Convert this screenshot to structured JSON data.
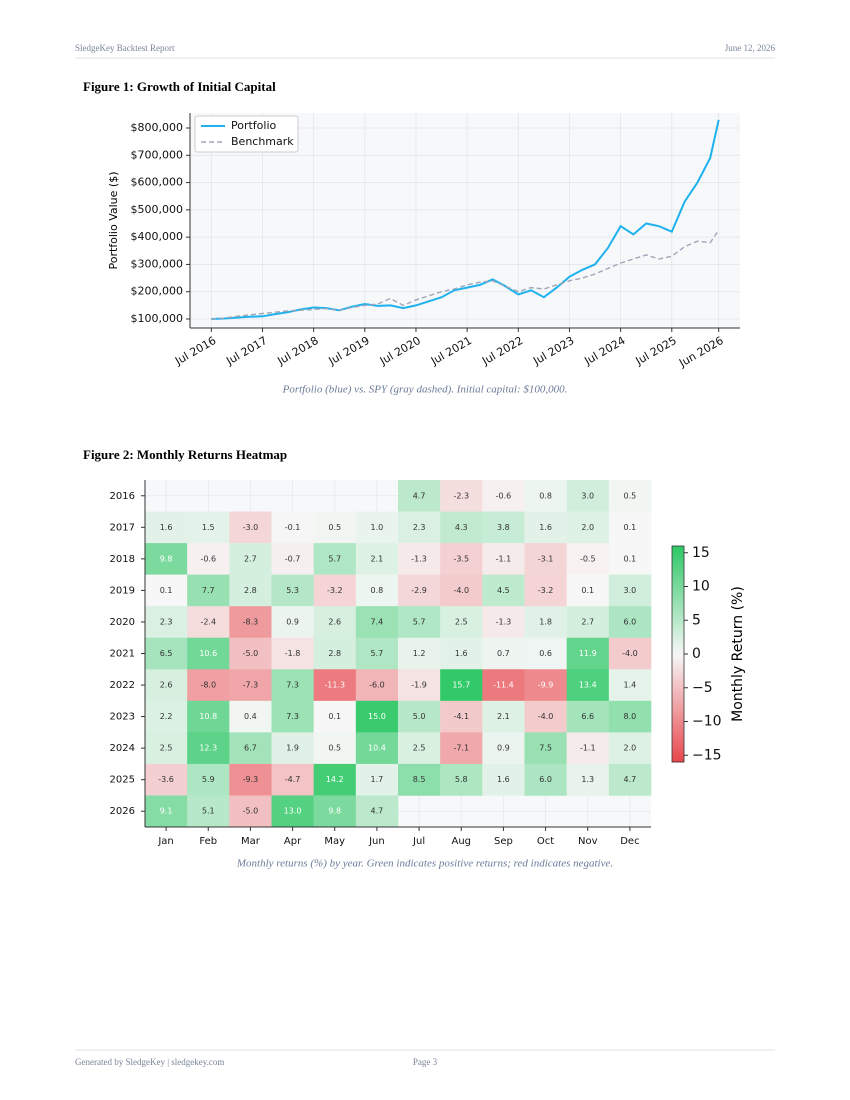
{
  "header": {
    "title": "SledgeKey Backtest Report",
    "date": "June 12, 2026"
  },
  "footer": {
    "left": "Generated by SledgeKey | sledgekey.com",
    "page": "Page 3"
  },
  "chart_data": [
    {
      "type": "line",
      "title": "Figure 1: Growth of Initial Capital",
      "caption": "Portfolio (blue) vs. SPY (gray dashed). Initial capital: $100,000.",
      "ylabel": "Portfolio Value ($)",
      "grid": true,
      "legend": "upper left",
      "x": [
        "2016-07",
        "2016-10",
        "2017-01",
        "2017-04",
        "2017-07",
        "2017-10",
        "2018-01",
        "2018-04",
        "2018-07",
        "2018-10",
        "2019-01",
        "2019-04",
        "2019-07",
        "2019-10",
        "2020-01",
        "2020-04",
        "2020-07",
        "2020-10",
        "2021-01",
        "2021-04",
        "2021-07",
        "2021-10",
        "2022-01",
        "2022-04",
        "2022-07",
        "2022-10",
        "2023-01",
        "2023-04",
        "2023-07",
        "2023-10",
        "2024-01",
        "2024-04",
        "2024-07",
        "2024-10",
        "2025-01",
        "2025-04",
        "2025-07",
        "2025-10",
        "2026-01",
        "2026-04",
        "2026-06"
      ],
      "series": [
        {
          "name": "Portfolio",
          "color": "#1fb2ef",
          "dash": false,
          "values": [
            100000,
            102000,
            105000,
            108000,
            110000,
            118000,
            125000,
            135000,
            142000,
            140000,
            132000,
            145000,
            155000,
            148000,
            150000,
            140000,
            150000,
            165000,
            180000,
            205000,
            215000,
            225000,
            245000,
            220000,
            190000,
            205000,
            180000,
            215000,
            255000,
            280000,
            300000,
            360000,
            440000,
            410000,
            450000,
            440000,
            420000,
            530000,
            600000,
            690000,
            830000
          ]
        },
        {
          "name": "Benchmark",
          "color": "#9ea6b8",
          "dash": true,
          "values": [
            100000,
            103000,
            110000,
            115000,
            120000,
            125000,
            130000,
            132000,
            135000,
            138000,
            132000,
            142000,
            150000,
            155000,
            175000,
            150000,
            170000,
            185000,
            200000,
            210000,
            225000,
            235000,
            240000,
            220000,
            200000,
            215000,
            210000,
            225000,
            240000,
            250000,
            265000,
            285000,
            305000,
            320000,
            335000,
            320000,
            330000,
            365000,
            385000,
            380000,
            425000
          ]
        }
      ],
      "xlim": [
        "2016-02",
        "2026-11"
      ],
      "xticks": [
        {
          "value": "2016-07",
          "label": "Jul 2016"
        },
        {
          "value": "2017-07",
          "label": "Jul 2017"
        },
        {
          "value": "2018-07",
          "label": "Jul 2018"
        },
        {
          "value": "2019-07",
          "label": "Jul 2019"
        },
        {
          "value": "2020-07",
          "label": "Jul 2020"
        },
        {
          "value": "2021-07",
          "label": "Jul 2021"
        },
        {
          "value": "2022-07",
          "label": "Jul 2022"
        },
        {
          "value": "2023-07",
          "label": "Jul 2023"
        },
        {
          "value": "2024-07",
          "label": "Jul 2024"
        },
        {
          "value": "2025-07",
          "label": "Jul 2025"
        },
        {
          "value": "2026-06",
          "label": "Jun 2026"
        }
      ],
      "ylim": [
        67000,
        855000
      ],
      "yticks": [
        {
          "value": 100000,
          "label": "$100,000"
        },
        {
          "value": 200000,
          "label": "$200,000"
        },
        {
          "value": 300000,
          "label": "$300,000"
        },
        {
          "value": 400000,
          "label": "$400,000"
        },
        {
          "value": 500000,
          "label": "$500,000"
        },
        {
          "value": 600000,
          "label": "$600,000"
        },
        {
          "value": 700000,
          "label": "$700,000"
        },
        {
          "value": 800000,
          "label": "$800,000"
        }
      ]
    },
    {
      "type": "heatmap",
      "title": "Figure 2: Monthly Returns Heatmap",
      "caption": "Monthly returns (%) by year. Green indicates positive returns; red indicates negative.",
      "categories": [
        "Jan",
        "Feb",
        "Mar",
        "Apr",
        "May",
        "Jun",
        "Jul",
        "Aug",
        "Sep",
        "Oct",
        "Nov",
        "Dec"
      ],
      "rows": [
        "2016",
        "2017",
        "2018",
        "2019",
        "2020",
        "2021",
        "2022",
        "2023",
        "2024",
        "2025",
        "2026"
      ],
      "values": [
        [
          null,
          null,
          null,
          null,
          null,
          null,
          4.7,
          -2.3,
          -0.6,
          0.8,
          3.0,
          0.5
        ],
        [
          1.6,
          1.5,
          -3.0,
          -0.1,
          0.5,
          1.0,
          2.3,
          4.3,
          3.8,
          1.6,
          2.0,
          0.1
        ],
        [
          9.8,
          -0.6,
          2.7,
          -0.7,
          5.7,
          2.1,
          -1.3,
          -3.5,
          -1.1,
          -3.1,
          -0.5,
          0.1
        ],
        [
          0.1,
          7.7,
          2.8,
          5.3,
          -3.2,
          0.8,
          -2.9,
          -4.0,
          4.5,
          -3.2,
          0.1,
          3.0
        ],
        [
          2.3,
          -2.4,
          -8.3,
          0.9,
          2.6,
          7.4,
          5.7,
          2.5,
          -1.3,
          1.8,
          2.7,
          6.0
        ],
        [
          6.5,
          10.6,
          -5.0,
          -1.8,
          2.8,
          5.7,
          1.2,
          1.6,
          0.7,
          0.6,
          11.9,
          -4.0
        ],
        [
          2.6,
          -8.0,
          -7.3,
          7.3,
          -11.3,
          -6.0,
          -1.9,
          15.7,
          -11.4,
          -9.9,
          13.4,
          1.4
        ],
        [
          2.2,
          10.8,
          0.4,
          7.3,
          0.1,
          15.0,
          5.0,
          -4.1,
          2.1,
          -4.0,
          6.6,
          8.0
        ],
        [
          2.5,
          12.3,
          6.7,
          1.9,
          0.5,
          10.4,
          2.5,
          -7.1,
          0.9,
          7.5,
          -1.1,
          2.0
        ],
        [
          -3.6,
          5.9,
          -9.3,
          -4.7,
          14.2,
          1.7,
          8.5,
          5.8,
          1.6,
          6.0,
          1.3,
          4.7
        ],
        [
          9.1,
          5.1,
          -5.0,
          13.0,
          9.8,
          4.7,
          null,
          null,
          null,
          null,
          null,
          null
        ]
      ],
      "value_labels": [
        [
          null,
          null,
          null,
          null,
          null,
          null,
          null,
          null,
          null,
          null,
          "3.0",
          null
        ],
        [
          null,
          null,
          "-3.0",
          null,
          null,
          "1.0",
          null,
          null,
          null,
          null,
          "2.0",
          null
        ],
        [
          null,
          null,
          null,
          null,
          null,
          null,
          null,
          null,
          null,
          null,
          null,
          null
        ],
        [
          null,
          null,
          null,
          null,
          null,
          null,
          null,
          "-4.0",
          null,
          null,
          null,
          "3.0"
        ],
        [
          null,
          null,
          null,
          null,
          null,
          null,
          null,
          null,
          null,
          null,
          null,
          "6.0"
        ],
        [
          null,
          null,
          "-5.0",
          null,
          null,
          null,
          null,
          null,
          null,
          null,
          null,
          "-4.0"
        ],
        [
          null,
          "-8.0",
          null,
          null,
          null,
          "-6.0",
          null,
          null,
          null,
          null,
          null,
          null
        ],
        [
          null,
          null,
          null,
          null,
          null,
          "15.0",
          "5.0",
          null,
          null,
          "-4.0",
          null,
          "8.0"
        ],
        [
          null,
          null,
          null,
          null,
          null,
          null,
          null,
          null,
          null,
          null,
          null,
          "2.0"
        ],
        [
          null,
          null,
          null,
          null,
          null,
          null,
          null,
          null,
          null,
          "6.0",
          null,
          null
        ],
        [
          null,
          null,
          "-5.0",
          "13.0",
          null,
          null,
          null,
          null,
          null,
          null,
          null,
          null
        ]
      ],
      "colors": {
        "negative": "#e8464c",
        "zero": "#f7f7f7",
        "positive": "#2ec866"
      },
      "clim": [
        -16,
        16
      ],
      "colorbar_label": "Monthly Return (%)",
      "colorbar_ticks": [
        15,
        10,
        5,
        0,
        {
          "value": -5,
          "label": "−5"
        },
        {
          "value": -10,
          "label": "−10"
        },
        {
          "value": -15,
          "label": "−15"
        }
      ]
    }
  ]
}
